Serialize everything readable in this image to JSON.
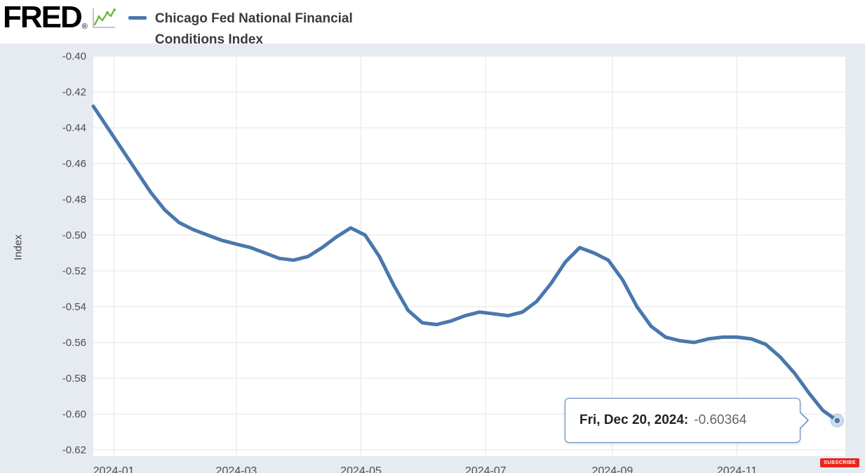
{
  "header": {
    "logo": "FRED",
    "registered": "®"
  },
  "legend": {
    "series_label": "Chicago Fed National Financial Conditions Index",
    "series_color": "#4878ac"
  },
  "tooltip": {
    "label": "Fri, Dec 20, 2024:",
    "value": "-0.60364"
  },
  "footer": {
    "subscribe_label": "SUBSCRIBE"
  },
  "chart_data": {
    "type": "line",
    "title": "Chicago Fed National Financial Conditions Index",
    "ylabel": "Index",
    "xlabel": "",
    "line_color": "#4878ac",
    "background_color": "#e6ebf1",
    "plot_background": "#ffffff",
    "grid": true,
    "legend_position": "top",
    "ylim": [
      -0.62,
      -0.4
    ],
    "y_ticks": [
      -0.4,
      -0.42,
      -0.44,
      -0.46,
      -0.48,
      -0.5,
      -0.52,
      -0.54,
      -0.56,
      -0.58,
      -0.6,
      -0.62
    ],
    "x_ticks": [
      {
        "label": "2024-01",
        "date": "2024-01-01"
      },
      {
        "label": "2024-03",
        "date": "2024-03-01"
      },
      {
        "label": "2024-05",
        "date": "2024-05-01"
      },
      {
        "label": "2024-07",
        "date": "2024-07-01"
      },
      {
        "label": "2024-09",
        "date": "2024-09-01"
      },
      {
        "label": "2024-11",
        "date": "2024-11-01"
      }
    ],
    "x_range": [
      "2023-12-22",
      "2024-12-24"
    ],
    "points": [
      [
        "2023-12-22",
        -0.428
      ],
      [
        "2023-12-29",
        -0.44
      ],
      [
        "2024-01-05",
        -0.452
      ],
      [
        "2024-01-12",
        -0.464
      ],
      [
        "2024-01-19",
        -0.476
      ],
      [
        "2024-01-26",
        -0.486
      ],
      [
        "2024-02-02",
        -0.493
      ],
      [
        "2024-02-09",
        -0.497
      ],
      [
        "2024-02-16",
        -0.5
      ],
      [
        "2024-02-23",
        -0.503
      ],
      [
        "2024-03-01",
        -0.505
      ],
      [
        "2024-03-08",
        -0.507
      ],
      [
        "2024-03-15",
        -0.51
      ],
      [
        "2024-03-22",
        -0.513
      ],
      [
        "2024-03-29",
        -0.514
      ],
      [
        "2024-04-05",
        -0.512
      ],
      [
        "2024-04-12",
        -0.507
      ],
      [
        "2024-04-19",
        -0.501
      ],
      [
        "2024-04-26",
        -0.496
      ],
      [
        "2024-05-03",
        -0.5
      ],
      [
        "2024-05-10",
        -0.512
      ],
      [
        "2024-05-17",
        -0.528
      ],
      [
        "2024-05-24",
        -0.542
      ],
      [
        "2024-05-31",
        -0.549
      ],
      [
        "2024-06-07",
        -0.55
      ],
      [
        "2024-06-14",
        -0.548
      ],
      [
        "2024-06-21",
        -0.545
      ],
      [
        "2024-06-28",
        -0.543
      ],
      [
        "2024-07-05",
        -0.544
      ],
      [
        "2024-07-12",
        -0.545
      ],
      [
        "2024-07-19",
        -0.543
      ],
      [
        "2024-07-26",
        -0.537
      ],
      [
        "2024-08-02",
        -0.527
      ],
      [
        "2024-08-09",
        -0.515
      ],
      [
        "2024-08-16",
        -0.507
      ],
      [
        "2024-08-23",
        -0.51
      ],
      [
        "2024-08-30",
        -0.514
      ],
      [
        "2024-09-06",
        -0.525
      ],
      [
        "2024-09-13",
        -0.54
      ],
      [
        "2024-09-20",
        -0.551
      ],
      [
        "2024-09-27",
        -0.557
      ],
      [
        "2024-10-04",
        -0.559
      ],
      [
        "2024-10-11",
        -0.56
      ],
      [
        "2024-10-18",
        -0.558
      ],
      [
        "2024-10-25",
        -0.557
      ],
      [
        "2024-11-01",
        -0.557
      ],
      [
        "2024-11-08",
        -0.558
      ],
      [
        "2024-11-15",
        -0.561
      ],
      [
        "2024-11-22",
        -0.568
      ],
      [
        "2024-11-29",
        -0.577
      ],
      [
        "2024-12-06",
        -0.588
      ],
      [
        "2024-12-13",
        -0.598
      ],
      [
        "2024-12-20",
        -0.60364
      ]
    ],
    "last_point": {
      "label": "Fri, Dec 20, 2024",
      "value": -0.60364
    }
  }
}
